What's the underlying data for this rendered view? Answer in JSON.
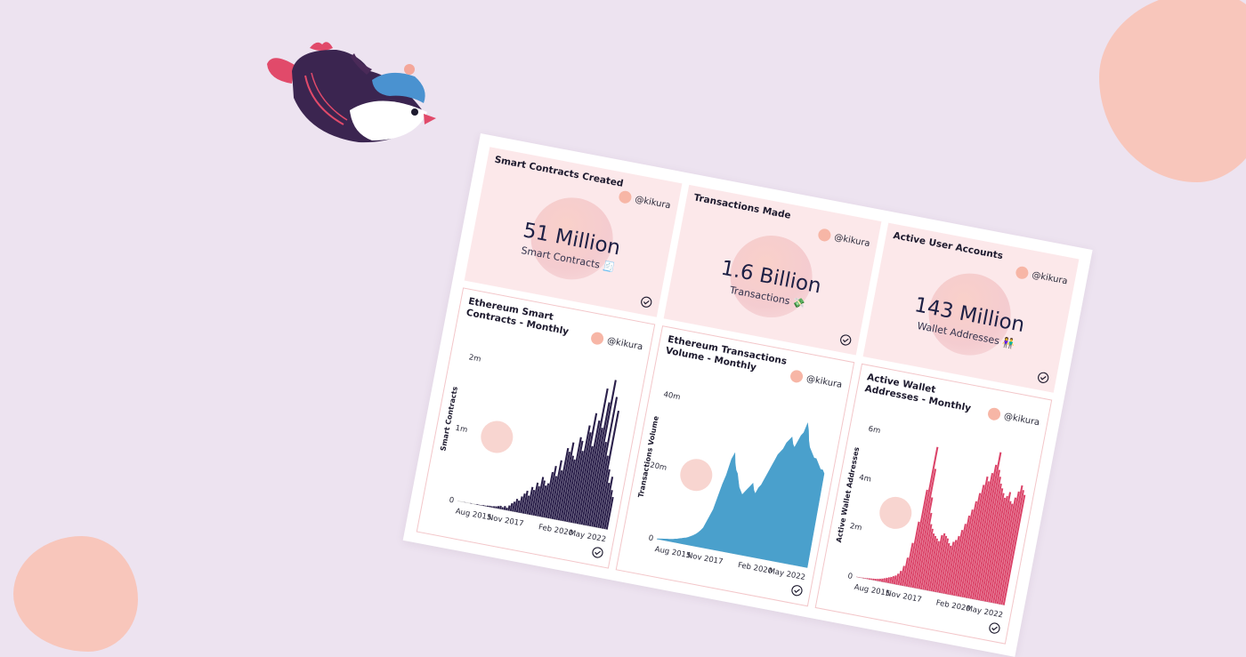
{
  "decor": {
    "blob_color": "#f8c6bb",
    "background": "#ede3f0",
    "mascot": "flying-penguin-bird"
  },
  "author": {
    "handle": "@kikura"
  },
  "counters": [
    {
      "title": "Smart Contracts Created",
      "value": "51 Million",
      "subtitle": "Smart Contracts 🧾"
    },
    {
      "title": "Transactions Made",
      "value": "1.6 Billion",
      "subtitle": "Transactions 💸"
    },
    {
      "title": "Active User Accounts",
      "value": "143 Million",
      "subtitle": "Wallet Addresses 👫"
    }
  ],
  "charts": [
    {
      "title": "Ethereum Smart Contracts - Monthly",
      "ylabel": "Smart Contracts",
      "color": "#2a1f4a"
    },
    {
      "title": "Ethereum Transactions Volume - Monthly",
      "ylabel": "Transactions Volume",
      "color": "#4aa0cc"
    },
    {
      "title": "Active Wallet Addresses - Monthly",
      "ylabel": "Active Wallet Addresses",
      "color": "#db4469"
    }
  ],
  "chart_data": [
    {
      "type": "bar",
      "title": "Ethereum Smart Contracts - Monthly",
      "ylabel": "Smart Contracts",
      "xlabel": "",
      "xticks": [
        "Aug 2015",
        "Nov 2017",
        "Feb 2020",
        "May 2022"
      ],
      "yticks": [
        "0",
        "1m",
        "2m"
      ],
      "ylim": [
        0,
        2400000
      ],
      "x_range": [
        "2015-08",
        "2022-07"
      ],
      "values": [
        0,
        0,
        0,
        2000,
        0,
        0,
        5000,
        0,
        3000,
        8000,
        4000,
        6000,
        12000,
        10000,
        15000,
        20000,
        18000,
        25000,
        30000,
        40000,
        50000,
        35000,
        60000,
        40000,
        80000,
        120000,
        150000,
        200000,
        180000,
        250000,
        300000,
        350000,
        280000,
        420000,
        380000,
        500000,
        450000,
        600000,
        550000,
        480000,
        520000,
        700000,
        800000,
        650000,
        900000,
        750000,
        1100000,
        1050000,
        1200000,
        1000000,
        950000,
        1300000,
        1250000,
        1100000,
        1500000,
        1400000,
        1700000,
        1200000,
        1600000,
        2100000,
        1500000,
        1900000,
        2250000,
        1300000,
        2000000,
        1100000,
        1800000,
        900000,
        700000,
        800000,
        600000,
        500000
      ]
    },
    {
      "type": "area",
      "title": "Ethereum Transactions Volume - Monthly",
      "ylabel": "Transactions Volume",
      "xlabel": "",
      "xticks": [
        "Aug 2015",
        "Nov 2017",
        "Feb 2020",
        "May 2022"
      ],
      "yticks": [
        "0",
        "20m",
        "40m"
      ],
      "ylim": [
        0,
        48000000
      ],
      "x_range": [
        "2015-08",
        "2022-07"
      ],
      "values": [
        100000,
        200000,
        300000,
        400000,
        500000,
        600000,
        700000,
        800000,
        1000000,
        1200000,
        1400000,
        1600000,
        1800000,
        2000000,
        2300000,
        2700000,
        3100000,
        3600000,
        4200000,
        5000000,
        6000000,
        8000000,
        10000000,
        12000000,
        16000000,
        20000000,
        23000000,
        28000000,
        30000000,
        27000000,
        25000000,
        24000000,
        22000000,
        20000000,
        19000000,
        18000000,
        19000000,
        20000000,
        21000000,
        22000000,
        20000000,
        19000000,
        21000000,
        22000000,
        24000000,
        26000000,
        28000000,
        30000000,
        32000000,
        33000000,
        34000000,
        36000000,
        37000000,
        38000000,
        36000000,
        35000000,
        37000000,
        39000000,
        40000000,
        43000000,
        41000000,
        38000000,
        36000000,
        35000000,
        34000000,
        33000000,
        33000000,
        32000000,
        31000000,
        30000000,
        30000000,
        29000000
      ]
    },
    {
      "type": "bar",
      "title": "Active Wallet Addresses - Monthly",
      "ylabel": "Active Wallet Addresses",
      "xlabel": "",
      "xticks": [
        "Aug 2015",
        "Nov 2017",
        "Feb 2020",
        "May 2022"
      ],
      "yticks": [
        "0",
        "2m",
        "4m",
        "6m"
      ],
      "ylim": [
        0,
        7200000
      ],
      "x_range": [
        "2015-08",
        "2022-07"
      ],
      "values": [
        10000,
        15000,
        20000,
        25000,
        30000,
        40000,
        50000,
        60000,
        70000,
        80000,
        100000,
        120000,
        150000,
        180000,
        220000,
        260000,
        300000,
        350000,
        400000,
        500000,
        650000,
        900000,
        1300000,
        2000000,
        3000000,
        4500000,
        6500000,
        5500000,
        4200000,
        3500000,
        3000000,
        2800000,
        2600000,
        2500000,
        2400000,
        2300000,
        2600000,
        2700000,
        2600000,
        2500000,
        2300000,
        2200000,
        2400000,
        2500000,
        2700000,
        3000000,
        3300000,
        3700000,
        4000000,
        4400000,
        4800000,
        5200000,
        5600000,
        5400000,
        5800000,
        6200000,
        6800000,
        6000000,
        5700000,
        5400000,
        5200000,
        5000000,
        4800000,
        4900000,
        5100000,
        4700000,
        4600000,
        4900000,
        5200000,
        5500000,
        5300000,
        5100000
      ]
    }
  ]
}
